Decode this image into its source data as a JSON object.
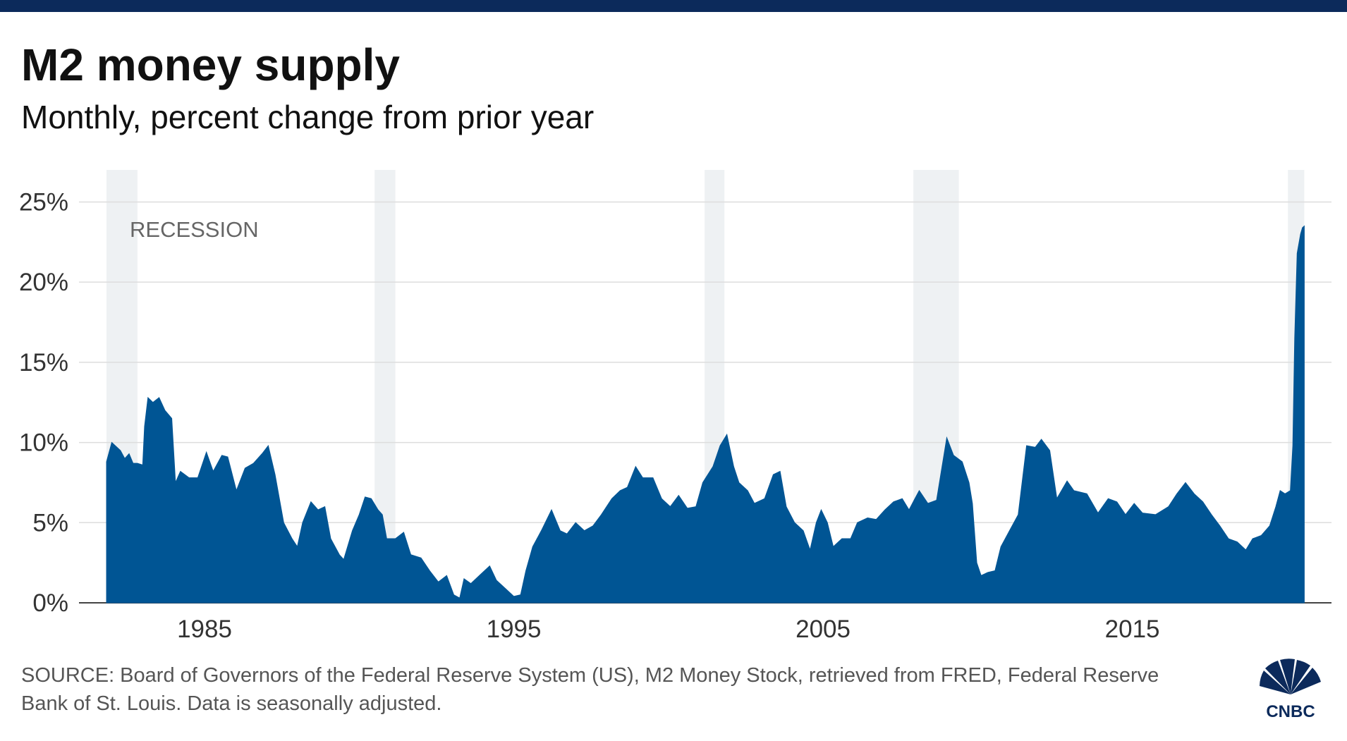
{
  "chart_data": {
    "type": "area",
    "title": "M2 money supply",
    "subtitle": "Monthly, percent change from prior year",
    "source": "SOURCE: Board of Governors of the Federal Reserve System (US), M2 Money Stock, retrieved from FRED, Federal Reserve Bank of St. Louis. Data is seasonally adjusted.",
    "logo": "CNBC",
    "annotation": "RECESSION",
    "recessions": [
      [
        1981.83,
        1982.83
      ],
      [
        1990.5,
        1991.17
      ],
      [
        2001.17,
        2001.81
      ],
      [
        2007.92,
        2009.39
      ],
      [
        2020.03,
        2020.56
      ]
    ],
    "recession_color": "#eef1f3",
    "xlim": [
      1980.94,
      2021.44
    ],
    "xticks": [
      1985,
      1995,
      2005,
      2015
    ],
    "ylim": [
      0,
      27
    ],
    "yticks": [
      {
        "value": 0,
        "label": "0%"
      },
      {
        "value": 5,
        "label": "5%"
      },
      {
        "value": 10,
        "label": "10%"
      },
      {
        "value": 15,
        "label": "15%"
      },
      {
        "value": 20,
        "label": "20%"
      },
      {
        "value": 25,
        "label": "25%"
      }
    ],
    "grid": true,
    "series": [
      {
        "color": "#005594",
        "x": [
          1981.83,
          1982.0,
          1982.28,
          1982.42,
          1982.56,
          1982.69,
          1982.83,
          1983.0,
          1983.06,
          1983.17,
          1983.33,
          1983.53,
          1983.72,
          1983.94,
          1984.06,
          1984.22,
          1984.5,
          1984.78,
          1985.06,
          1985.28,
          1985.56,
          1985.75,
          1986.03,
          1986.31,
          1986.58,
          1986.86,
          1987.06,
          1987.28,
          1987.56,
          1987.83,
          1988.0,
          1988.17,
          1988.44,
          1988.67,
          1988.89,
          1989.08,
          1989.36,
          1989.5,
          1989.78,
          1990.0,
          1990.19,
          1990.39,
          1990.61,
          1990.75,
          1990.89,
          1991.17,
          1991.44,
          1991.67,
          1992.0,
          1992.28,
          1992.56,
          1992.83,
          1993.06,
          1993.25,
          1993.39,
          1993.61,
          1993.94,
          1994.22,
          1994.44,
          1994.78,
          1995.0,
          1995.22,
          1995.39,
          1995.61,
          1995.89,
          1996.22,
          1996.5,
          1996.72,
          1997.0,
          1997.28,
          1997.56,
          1997.83,
          1998.17,
          1998.44,
          1998.67,
          1998.94,
          1999.17,
          1999.5,
          1999.78,
          2000.06,
          2000.33,
          2000.61,
          2000.89,
          2001.11,
          2001.44,
          2001.67,
          2001.89,
          2002.11,
          2002.28,
          2002.56,
          2002.78,
          2003.11,
          2003.39,
          2003.61,
          2003.81,
          2004.08,
          2004.36,
          2004.58,
          2004.78,
          2004.94,
          2005.14,
          2005.33,
          2005.61,
          2005.89,
          2006.11,
          2006.44,
          2006.72,
          2007.0,
          2007.28,
          2007.56,
          2007.78,
          2007.97,
          2008.11,
          2008.39,
          2008.67,
          2008.89,
          2009.0,
          2009.22,
          2009.5,
          2009.72,
          2009.83,
          2009.97,
          2010.11,
          2010.33,
          2010.56,
          2010.75,
          2011.03,
          2011.31,
          2011.58,
          2011.86,
          2012.06,
          2012.33,
          2012.56,
          2012.89,
          2013.11,
          2013.53,
          2013.89,
          2014.22,
          2014.5,
          2014.78,
          2015.06,
          2015.33,
          2015.75,
          2016.17,
          2016.44,
          2016.72,
          2017.0,
          2017.28,
          2017.56,
          2017.83,
          2018.11,
          2018.39,
          2018.67,
          2018.89,
          2019.17,
          2019.44,
          2019.64,
          2019.78,
          2019.94,
          2020.11,
          2020.19,
          2020.25,
          2020.33,
          2020.44,
          2020.5,
          2020.56
        ],
        "values": [
          8.8,
          10.0,
          9.5,
          9.0,
          9.3,
          8.7,
          8.7,
          8.6,
          11.0,
          12.8,
          12.5,
          12.8,
          12.0,
          11.5,
          7.5,
          8.2,
          7.8,
          7.8,
          9.4,
          8.2,
          9.2,
          9.1,
          7.0,
          8.4,
          8.7,
          9.3,
          9.8,
          8.0,
          5.0,
          4.0,
          3.5,
          5.0,
          6.3,
          5.8,
          6.0,
          4.0,
          3.0,
          2.7,
          4.5,
          5.5,
          6.6,
          6.5,
          5.8,
          5.5,
          4.0,
          4.0,
          4.4,
          3.0,
          2.8,
          2.0,
          1.3,
          1.7,
          0.5,
          0.3,
          1.5,
          1.2,
          1.8,
          2.3,
          1.4,
          0.8,
          0.4,
          0.5,
          2.0,
          3.5,
          4.5,
          5.8,
          4.5,
          4.3,
          5.0,
          4.5,
          4.8,
          5.5,
          6.5,
          7.0,
          7.2,
          8.5,
          7.8,
          7.8,
          6.5,
          6.0,
          6.7,
          5.9,
          6.0,
          7.5,
          8.5,
          9.8,
          10.5,
          8.5,
          7.5,
          7.0,
          6.2,
          6.5,
          8.0,
          8.2,
          6.0,
          5.0,
          4.5,
          3.3,
          5.0,
          5.8,
          5.0,
          3.5,
          4.0,
          4.0,
          5.0,
          5.3,
          5.2,
          5.8,
          6.3,
          6.5,
          5.8,
          6.5,
          7.0,
          6.2,
          6.4,
          9.0,
          10.3,
          9.2,
          8.8,
          7.5,
          6.2,
          2.5,
          1.7,
          1.9,
          2.0,
          3.5,
          4.5,
          5.5,
          9.8,
          9.7,
          10.2,
          9.5,
          6.5,
          7.6,
          7.0,
          6.8,
          5.6,
          6.5,
          6.3,
          5.5,
          6.2,
          5.6,
          5.5,
          6.0,
          6.8,
          7.5,
          6.8,
          6.3,
          5.5,
          4.8,
          4.0,
          3.8,
          3.3,
          4.0,
          4.2,
          4.8,
          6.0,
          7.0,
          6.8,
          7.0,
          9.8,
          16.5,
          21.8,
          23.0,
          23.4,
          23.5
        ]
      }
    ]
  }
}
